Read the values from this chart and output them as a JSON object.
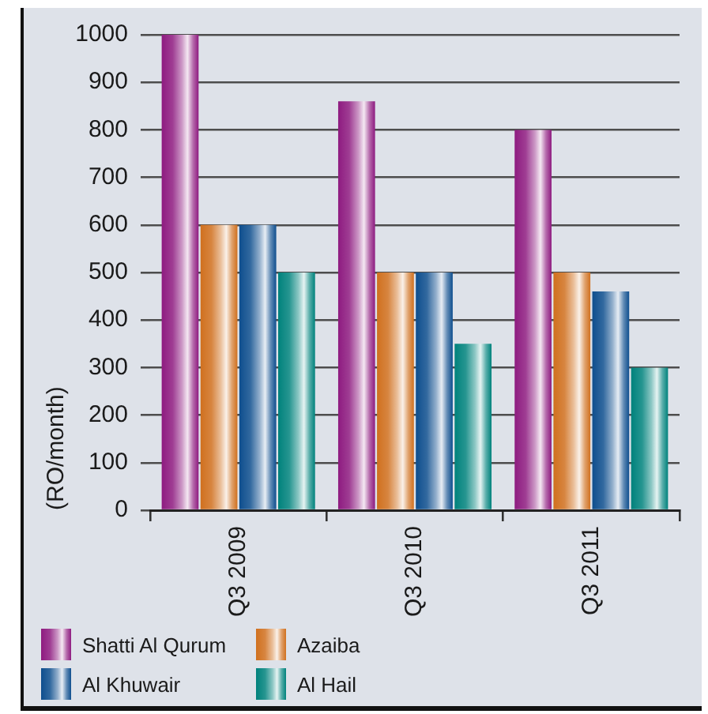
{
  "chart_data": {
    "type": "bar",
    "ylabel": "(RO/month)",
    "categories": [
      "Q3 2009",
      "Q3 2010",
      "Q3 2011"
    ],
    "series": [
      {
        "name": "Shatti Al Qurum",
        "color": "#8e1b80",
        "values": [
          1000,
          860,
          800
        ]
      },
      {
        "name": "Azaiba",
        "color": "#d0701e",
        "values": [
          600,
          500,
          500
        ]
      },
      {
        "name": "Al Khuwair",
        "color": "#0e4e8e",
        "values": [
          600,
          500,
          460
        ]
      },
      {
        "name": "Al Hail",
        "color": "#00827c",
        "values": [
          500,
          350,
          300
        ]
      }
    ],
    "ylim": [
      0,
      1000
    ],
    "yticks": [
      0,
      100,
      200,
      300,
      400,
      500,
      600,
      700,
      800,
      900,
      1000
    ],
    "grid": "y",
    "legend": "bottom"
  }
}
